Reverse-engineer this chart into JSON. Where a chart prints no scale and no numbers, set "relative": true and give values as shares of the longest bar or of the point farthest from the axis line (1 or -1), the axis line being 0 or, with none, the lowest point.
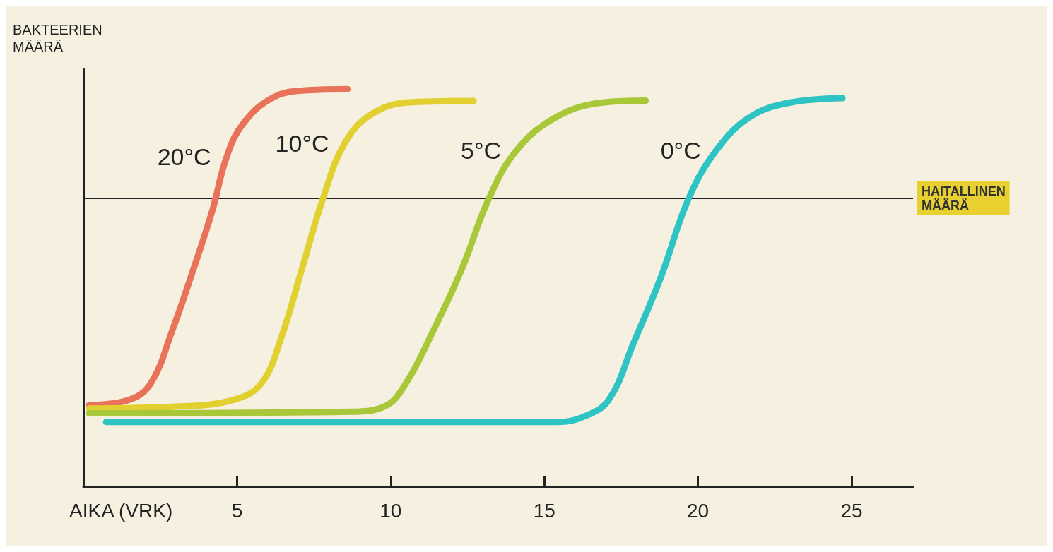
{
  "chart_data": {
    "type": "line",
    "relative": true,
    "xlabel": "AIKA (VRK)",
    "ylabel": "BAKTEERIEN MÄÄRÄ",
    "xlim": [
      0,
      27
    ],
    "xticks": [
      5,
      10,
      15,
      20,
      25
    ],
    "grid": false,
    "legend": false,
    "marker": "none",
    "line_style": "solid",
    "series": [
      {
        "name": "20°C",
        "color": "#e8735a",
        "x": [
          0.18,
          1.5,
          2.2,
          2.9,
          3.5,
          4.2,
          4.66,
          5.2,
          6.2,
          7.3,
          8.6
        ],
        "values": [
          0.204,
          0.218,
          0.26,
          0.394,
          0.528,
          0.695,
          0.829,
          0.913,
          0.98,
          0.997,
          1
        ]
      },
      {
        "name": "10°C",
        "color": "#e2cf30",
        "x": [
          0.18,
          3.1,
          4.9,
          5.8,
          6.45,
          7.1,
          7.8,
          8.5,
          9.4,
          10.7,
          12.7
        ],
        "values": [
          0.196,
          0.201,
          0.218,
          0.26,
          0.377,
          0.544,
          0.725,
          0.863,
          0.938,
          0.967,
          0.97
        ]
      },
      {
        "name": "5°C",
        "color": "#a8c83a",
        "x": [
          0.18,
          8.7,
          9.8,
          10.5,
          11.4,
          12.3,
          13.2,
          14.1,
          15.4,
          16.9,
          18.3
        ],
        "values": [
          0.184,
          0.188,
          0.201,
          0.26,
          0.394,
          0.544,
          0.725,
          0.846,
          0.93,
          0.966,
          0.971
        ]
      },
      {
        "name": "0°C",
        "color": "#2ec4c4",
        "x": [
          0.74,
          15.4,
          16.3,
          17.1,
          17.9,
          18.8,
          19.7,
          20.6,
          21.7,
          23,
          24.7
        ],
        "values": [
          0.162,
          0.162,
          0.176,
          0.218,
          0.36,
          0.528,
          0.725,
          0.846,
          0.93,
          0.966,
          0.977
        ]
      }
    ],
    "ref_lines": [
      {
        "axis": "y",
        "value": 0.725,
        "label": "HAITALLINEN MÄÄRÄ",
        "color": "#222222"
      }
    ]
  }
}
